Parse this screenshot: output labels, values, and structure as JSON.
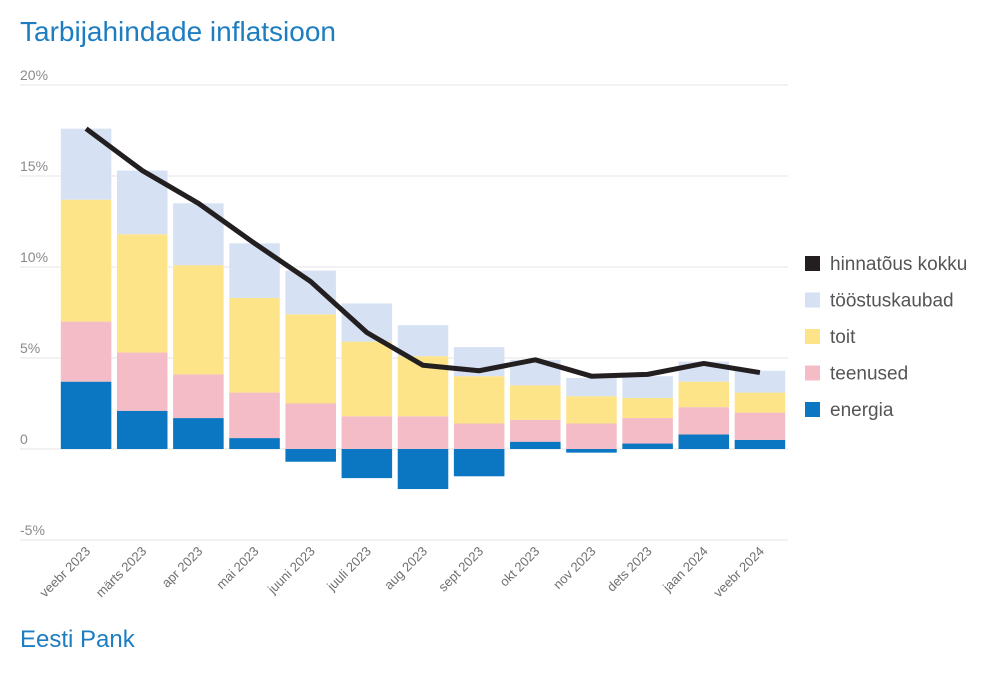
{
  "source": "Eesti Pank",
  "chart_data": {
    "type": "bar",
    "stacked": true,
    "title": "Tarbijahindade inflatsioon",
    "categories": [
      "veebr 2023",
      "märts 2023",
      "apr 2023",
      "mai 2023",
      "juuni 2023",
      "juuli 2023",
      "aug 2023",
      "sept 2023",
      "okt 2023",
      "nov 2023",
      "dets 2023",
      "jaan 2024",
      "veebr 2024"
    ],
    "ylim": [
      -5,
      20
    ],
    "yticks": [
      -5,
      0,
      5,
      10,
      15,
      20
    ],
    "ytick_labels": [
      "-5%",
      "0",
      "5%",
      "10%",
      "15%",
      "20%"
    ],
    "grid": true,
    "legend_position": "right",
    "series": [
      {
        "name": "energia",
        "color": "#0b77c2",
        "values": [
          3.7,
          2.1,
          1.7,
          0.6,
          -0.7,
          -1.6,
          -2.2,
          -1.5,
          0.4,
          -0.2,
          0.3,
          0.8,
          0.5
        ]
      },
      {
        "name": "teenused",
        "color": "#f4bcc6",
        "values": [
          3.3,
          3.2,
          2.4,
          2.5,
          2.5,
          1.8,
          1.8,
          1.4,
          1.2,
          1.4,
          1.4,
          1.5,
          1.5
        ]
      },
      {
        "name": "toit",
        "color": "#fde488",
        "values": [
          6.7,
          6.5,
          6.0,
          5.2,
          4.9,
          4.1,
          3.3,
          2.6,
          1.9,
          1.5,
          1.1,
          1.4,
          1.1
        ]
      },
      {
        "name": "tööstuskaubad",
        "color": "#d6e2f3",
        "values": [
          3.9,
          3.5,
          3.4,
          3.0,
          2.4,
          2.1,
          1.7,
          1.6,
          1.4,
          1.0,
          1.2,
          1.1,
          1.2
        ]
      }
    ],
    "line": {
      "name": "hinnatõus kokku",
      "color": "#231f20",
      "values": [
        17.6,
        15.3,
        13.5,
        11.3,
        9.2,
        6.4,
        4.6,
        4.3,
        4.9,
        4.0,
        4.1,
        4.7,
        4.2
      ]
    },
    "legend": [
      {
        "name": "hinnatõus kokku",
        "color": "#231f20"
      },
      {
        "name": "tööstuskaubad",
        "color": "#d6e2f3"
      },
      {
        "name": "toit",
        "color": "#fde488"
      },
      {
        "name": "teenused",
        "color": "#f4bcc6"
      },
      {
        "name": "energia",
        "color": "#0b77c2"
      }
    ]
  }
}
